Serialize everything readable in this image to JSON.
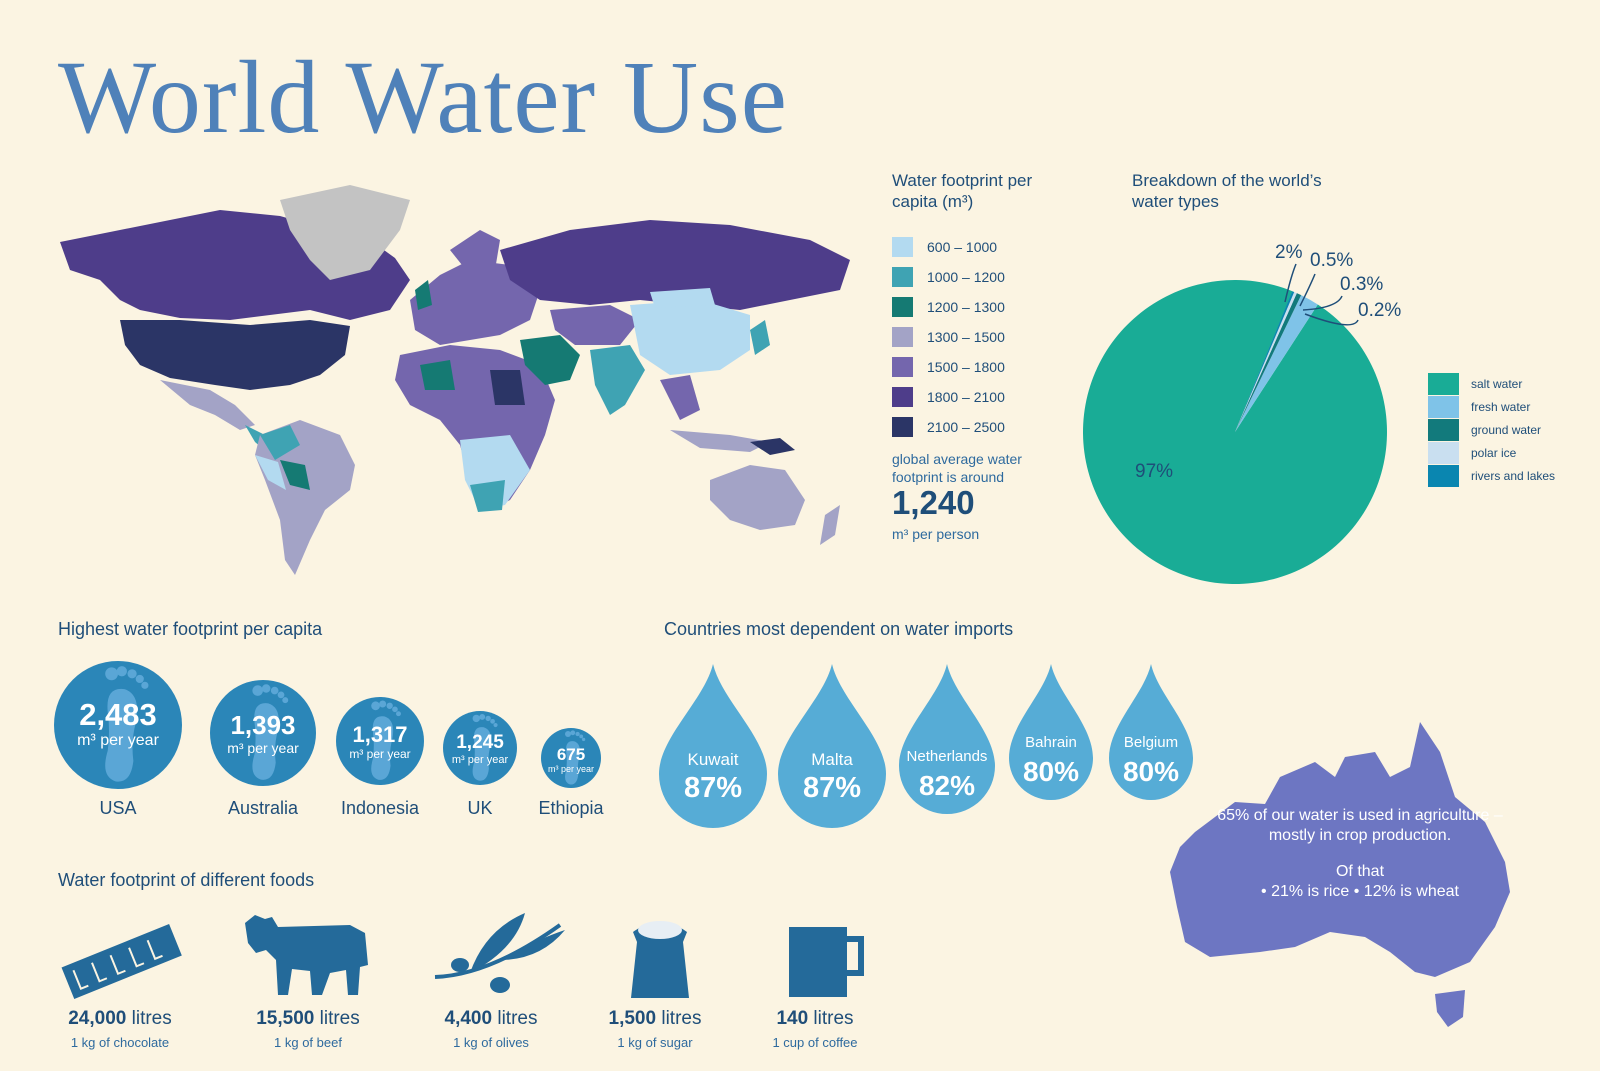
{
  "title": "World Water Use",
  "map_legend": {
    "title": "Water footprint per capita (m³)",
    "items": [
      {
        "label": "600 – 1000",
        "color": "#b3daf0"
      },
      {
        "label": "1000 – 1200",
        "color": "#3fa3b3"
      },
      {
        "label": "1200 – 1300",
        "color": "#157a73"
      },
      {
        "label": "1300 – 1500",
        "color": "#a3a3c6"
      },
      {
        "label": "1500 – 1800",
        "color": "#7466ad"
      },
      {
        "label": "1800 – 2100",
        "color": "#4e3d8a"
      },
      {
        "label": "2100 – 2500",
        "color": "#2b3566"
      }
    ],
    "global_note": "global average water footprint is around",
    "global_value": "1,240",
    "global_unit": "m³ per person"
  },
  "chart_data": [
    {
      "type": "pie",
      "title": "Breakdown of the world’s water types",
      "slices": [
        {
          "label": "salt water",
          "value": 97,
          "value_label": "97%",
          "color": "#19ac96"
        },
        {
          "label": "fresh water",
          "value": 2,
          "value_label": "2%",
          "color": "#7fc3e8"
        },
        {
          "label": "ground water",
          "value": 0.5,
          "value_label": "0.5%",
          "color": "#127a7c"
        },
        {
          "label": "polar ice",
          "value": 0.3,
          "value_label": "0.3%",
          "color": "#c9dff0"
        },
        {
          "label": "rivers and lakes",
          "value": 0.2,
          "value_label": "0.2%",
          "color": "#0a86b0"
        }
      ],
      "legend": "right"
    }
  ],
  "highest_footprint": {
    "title": "Highest water footprint per capita",
    "unit": "m³ per year",
    "items": [
      {
        "country": "USA",
        "value": "2,483"
      },
      {
        "country": "Australia",
        "value": "1,393"
      },
      {
        "country": "Indonesia",
        "value": "1,317"
      },
      {
        "country": "UK",
        "value": "1,245"
      },
      {
        "country": "Ethiopia",
        "value": "675"
      }
    ]
  },
  "imports": {
    "title": "Countries most dependent on water imports",
    "items": [
      {
        "country": "Kuwait",
        "value": "87%"
      },
      {
        "country": "Malta",
        "value": "87%"
      },
      {
        "country": "Netherlands",
        "value": "82%"
      },
      {
        "country": "Bahrain",
        "value": "80%"
      },
      {
        "country": "Belgium",
        "value": "80%"
      }
    ]
  },
  "foods": {
    "title": "Water footprint of different foods",
    "unit": "litres",
    "items": [
      {
        "amount": "24,000",
        "desc": "1 kg of chocolate",
        "icon": "chocolate-icon"
      },
      {
        "amount": "15,500",
        "desc": "1 kg of beef",
        "icon": "cow-icon"
      },
      {
        "amount": "4,400",
        "desc": "1 kg of olives",
        "icon": "olive-branch-icon"
      },
      {
        "amount": "1,500",
        "desc": "1 kg of sugar",
        "icon": "sugar-sack-icon"
      },
      {
        "amount": "140",
        "desc": "1 cup of coffee",
        "icon": "coffee-mug-icon"
      }
    ]
  },
  "australia_note": {
    "line1": "65% of our water is used in agriculture – mostly in crop production.",
    "line2": "Of that",
    "line3": "• 21% is rice   • 12% is wheat"
  }
}
